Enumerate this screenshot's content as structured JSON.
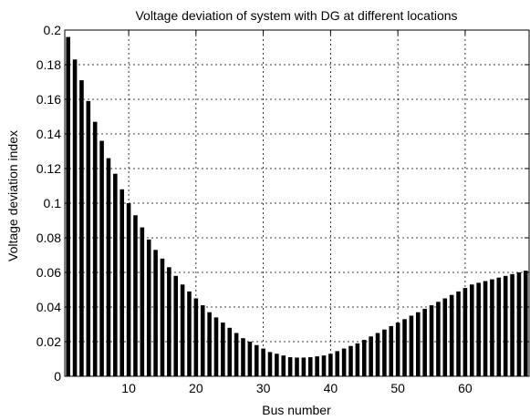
{
  "chart_data": {
    "type": "bar",
    "title": "Voltage deviation of system with DG at different locations",
    "xlabel": "Bus number",
    "ylabel": "Voltage deviation index",
    "xlim": [
      1,
      69
    ],
    "ylim": [
      0,
      0.2
    ],
    "xticks": [
      10,
      20,
      30,
      40,
      50,
      60
    ],
    "xtick_labels": [
      "10",
      "20",
      "30",
      "40",
      "50",
      "60"
    ],
    "yticks": [
      0,
      0.02,
      0.04,
      0.06,
      0.08,
      0.1,
      0.12,
      0.14,
      0.16,
      0.18,
      0.2
    ],
    "ytick_labels": [
      "0",
      "0.02",
      "0.04",
      "0.06",
      "0.08",
      "0.1",
      "0.12",
      "0.14",
      "0.16",
      "0.18",
      "0.2"
    ],
    "grid": true,
    "bar_color": "#000000",
    "x": [
      1,
      2,
      3,
      4,
      5,
      6,
      7,
      8,
      9,
      10,
      11,
      12,
      13,
      14,
      15,
      16,
      17,
      18,
      19,
      20,
      21,
      22,
      23,
      24,
      25,
      26,
      27,
      28,
      29,
      30,
      31,
      32,
      33,
      34,
      35,
      36,
      37,
      38,
      39,
      40,
      41,
      42,
      43,
      44,
      45,
      46,
      47,
      48,
      49,
      50,
      51,
      52,
      53,
      54,
      55,
      56,
      57,
      58,
      59,
      60,
      61,
      62,
      63,
      64,
      65,
      66,
      67,
      68,
      69
    ],
    "values": [
      0.196,
      0.183,
      0.171,
      0.159,
      0.147,
      0.136,
      0.126,
      0.117,
      0.108,
      0.1,
      0.093,
      0.086,
      0.079,
      0.073,
      0.068,
      0.063,
      0.058,
      0.053,
      0.049,
      0.045,
      0.041,
      0.037,
      0.034,
      0.031,
      0.028,
      0.025,
      0.022,
      0.02,
      0.018,
      0.016,
      0.014,
      0.013,
      0.012,
      0.011,
      0.0108,
      0.0108,
      0.011,
      0.0115,
      0.012,
      0.013,
      0.0145,
      0.016,
      0.0175,
      0.019,
      0.021,
      0.023,
      0.025,
      0.027,
      0.029,
      0.031,
      0.033,
      0.035,
      0.037,
      0.039,
      0.041,
      0.043,
      0.045,
      0.047,
      0.049,
      0.051,
      0.053,
      0.054,
      0.055,
      0.056,
      0.057,
      0.058,
      0.059,
      0.06,
      0.061
    ]
  }
}
